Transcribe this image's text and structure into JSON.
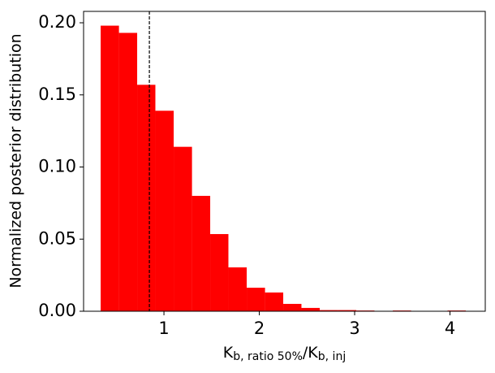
{
  "chart_data": {
    "type": "histogram",
    "ylabel": "Normalized posterior distribution",
    "xlabel_parts": [
      "K",
      "b, ratio 50%",
      "/K",
      "b, inj"
    ],
    "bins": [
      0.336,
      0.528,
      0.719,
      0.91,
      1.102,
      1.294,
      1.485,
      1.676,
      1.868,
      2.06,
      2.251,
      2.442,
      2.634,
      2.826,
      3.017,
      3.208,
      3.4,
      3.592,
      3.783,
      3.974,
      4.166
    ],
    "values": [
      0.198,
      0.193,
      0.157,
      0.139,
      0.114,
      0.08,
      0.0535,
      0.0304,
      0.0163,
      0.013,
      0.0051,
      0.0023,
      0.0008,
      0.0008,
      0.0005,
      0,
      0.0005,
      0,
      0,
      0.0005
    ],
    "color": "#ff0000",
    "vline": 0.847,
    "vline_color": "#000000",
    "xlim": [
      0.157,
      4.37
    ],
    "ylim": [
      0,
      0.2079
    ],
    "xticks": [
      1,
      2,
      3,
      4
    ],
    "yticks": [
      {
        "value": 0,
        "label": "0.00"
      },
      0.05,
      {
        "value": 0.1,
        "label": "0.10"
      },
      0.15,
      {
        "value": 0.2,
        "label": "0.20"
      }
    ],
    "grid": false
  }
}
